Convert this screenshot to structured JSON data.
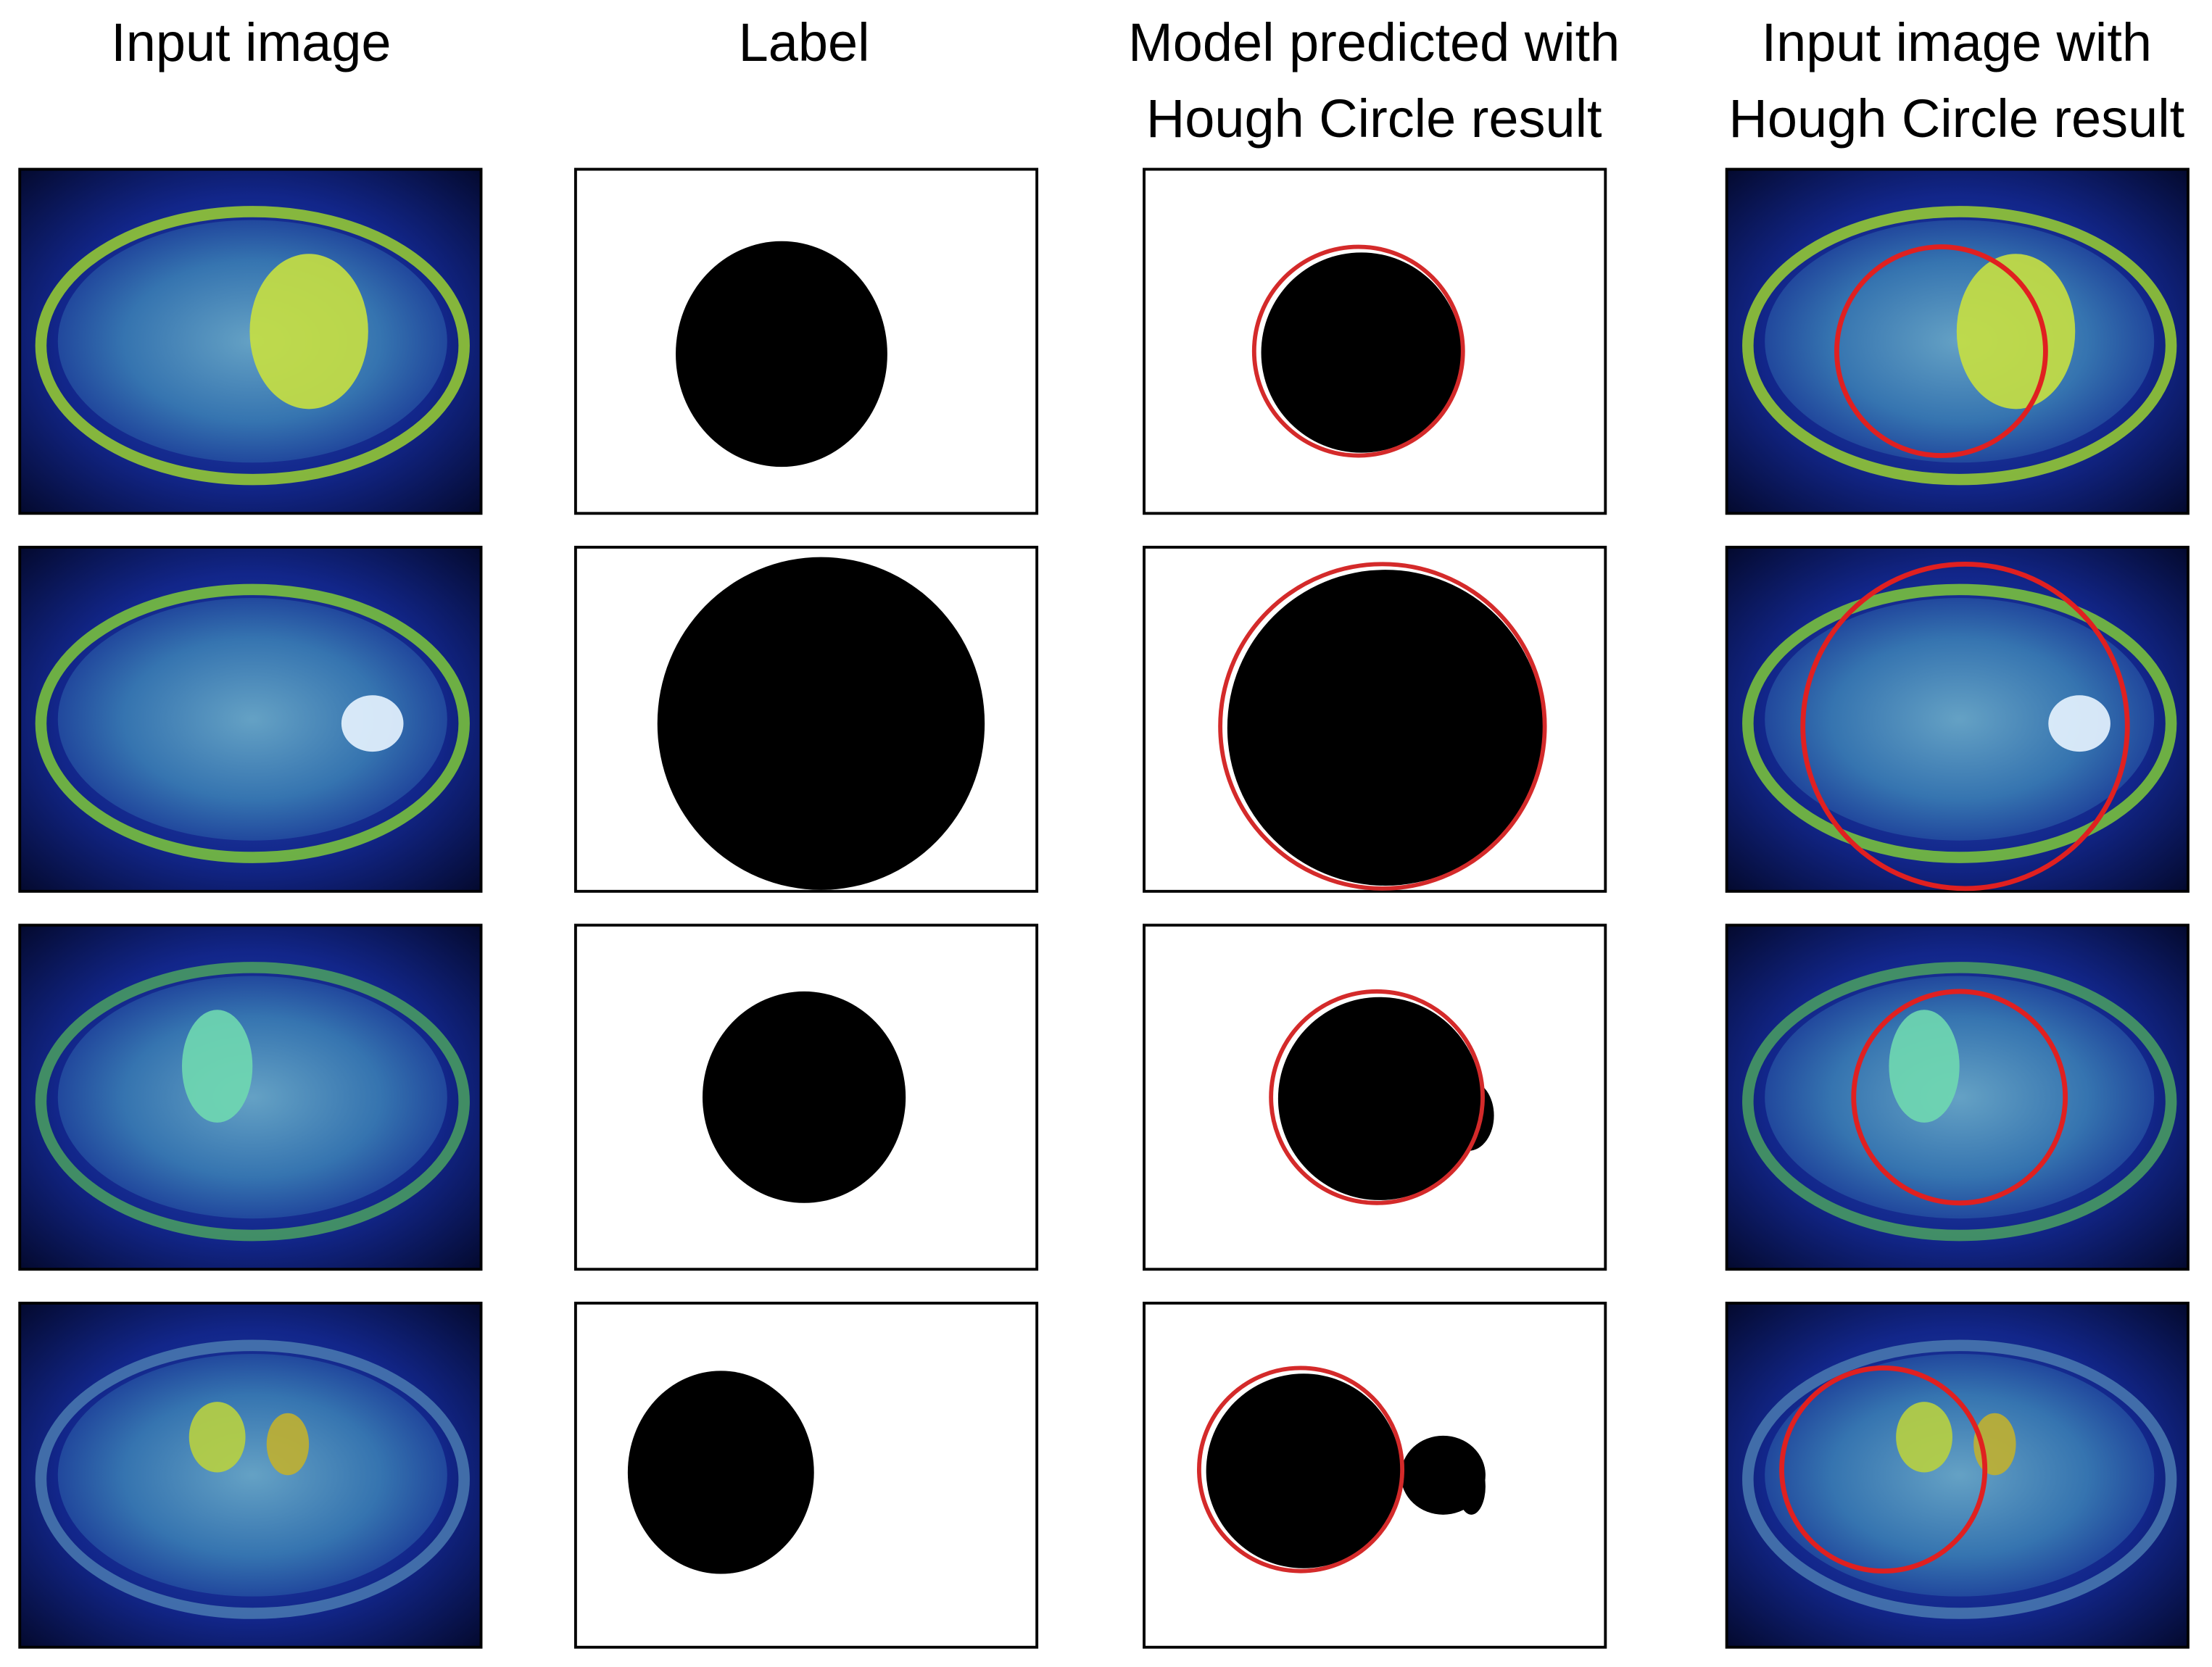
{
  "headers": [
    [
      "Input image"
    ],
    [
      "Label"
    ],
    [
      "Model predicted with",
      "Hough Circle result"
    ],
    [
      "Input image with",
      "Hough Circle result"
    ]
  ]
}
